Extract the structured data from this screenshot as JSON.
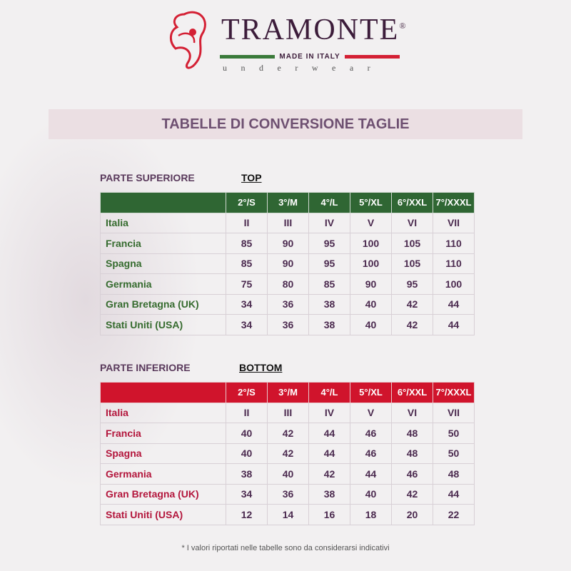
{
  "logo": {
    "brand": "TRAMONTE",
    "registered": "®",
    "tagline": "MADE IN ITALY",
    "sub": "underwear"
  },
  "title": "TABELLE DI CONVERSIONE TAGLIE",
  "top": {
    "section": "PARTE SUPERIORE",
    "label": "TOP",
    "header_color": "#2f6633",
    "columns": [
      "2°/S",
      "3°/M",
      "4°/L",
      "5°/XL",
      "6°/XXL",
      "7°/XXXL"
    ],
    "rows": [
      {
        "country": "Italia",
        "values": [
          "II",
          "III",
          "IV",
          "V",
          "VI",
          "VII"
        ]
      },
      {
        "country": "Francia",
        "values": [
          "85",
          "90",
          "95",
          "100",
          "105",
          "110"
        ]
      },
      {
        "country": "Spagna",
        "values": [
          "85",
          "90",
          "95",
          "100",
          "105",
          "110"
        ]
      },
      {
        "country": "Germania",
        "values": [
          "75",
          "80",
          "85",
          "90",
          "95",
          "100"
        ]
      },
      {
        "country": "Gran Bretagna (UK)",
        "values": [
          "34",
          "36",
          "38",
          "40",
          "42",
          "44"
        ]
      },
      {
        "country": "Stati Uniti (USA)",
        "values": [
          "34",
          "36",
          "38",
          "40",
          "42",
          "44"
        ]
      }
    ]
  },
  "bottom": {
    "section": "PARTE INFERIORE",
    "label": "BOTTOM",
    "header_color": "#d0142c",
    "columns": [
      "2°/S",
      "3°/M",
      "4°/L",
      "5°/XL",
      "6°/XXL",
      "7°/XXXL"
    ],
    "rows": [
      {
        "country": "Italia",
        "values": [
          "II",
          "III",
          "IV",
          "V",
          "VI",
          "VII"
        ]
      },
      {
        "country": "Francia",
        "values": [
          "40",
          "42",
          "44",
          "46",
          "48",
          "50"
        ]
      },
      {
        "country": "Spagna",
        "values": [
          "40",
          "42",
          "44",
          "46",
          "48",
          "50"
        ]
      },
      {
        "country": "Germania",
        "values": [
          "38",
          "40",
          "42",
          "44",
          "46",
          "48"
        ]
      },
      {
        "country": "Gran Bretagna (UK)",
        "values": [
          "34",
          "36",
          "38",
          "40",
          "42",
          "44"
        ]
      },
      {
        "country": "Stati Uniti (USA)",
        "values": [
          "12",
          "14",
          "16",
          "18",
          "20",
          "22"
        ]
      }
    ]
  },
  "footnote": "* I valori riportati nelle tabelle sono da considerarsi indicativi"
}
